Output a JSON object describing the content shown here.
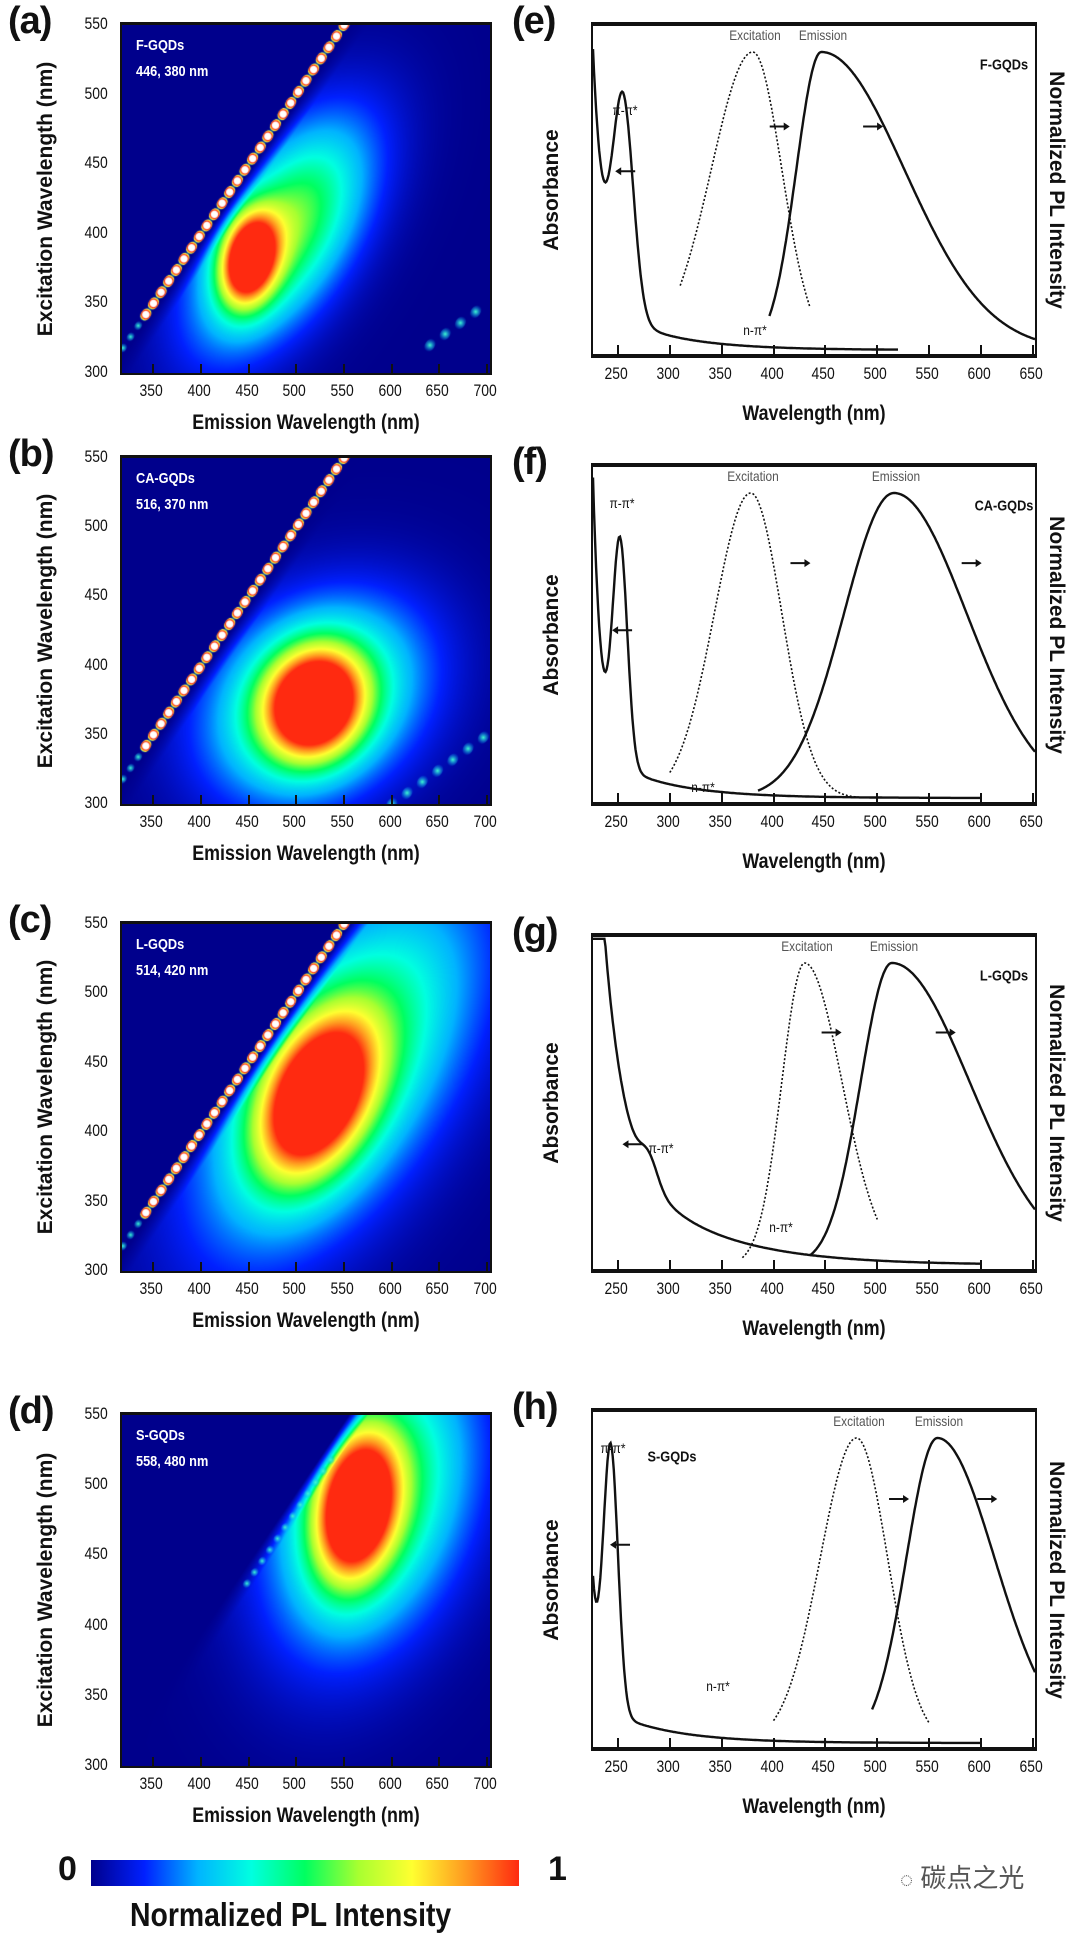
{
  "colormap": [
    "#00008c",
    "#0020ff",
    "#00b4ff",
    "#00ffe0",
    "#00ff60",
    "#a8ff30",
    "#ffff30",
    "#ff9a20",
    "#ff2a10"
  ],
  "colorbar": {
    "min_label": "0",
    "max_label": "1",
    "title": "Normalized PL Intensity"
  },
  "watermark": "碳点之光",
  "chart_data": [
    {
      "type": "heatmap",
      "panel": "(a)",
      "sample": "F-GQDs",
      "peak_label": "446, 380 nm",
      "peak": {
        "emission": 446,
        "excitation": 380
      },
      "xlabel": "Emission Wavelength (nm)",
      "ylabel": "Excitation Wavelength (nm)",
      "xlim": [
        317,
        703
      ],
      "ylim": [
        300,
        550
      ],
      "xticks": [
        "350",
        "400",
        "450",
        "500",
        "550",
        "600",
        "650",
        "700"
      ],
      "yticks": [
        "300",
        "350",
        "400",
        "450",
        "500",
        "550"
      ]
    },
    {
      "type": "heatmap",
      "panel": "(b)",
      "sample": "CA-GQDs",
      "peak_label": "516, 370 nm",
      "peak": {
        "emission": 516,
        "excitation": 370
      },
      "xlabel": "Emission Wavelength (nm)",
      "ylabel": "Excitation Wavelength (nm)",
      "xlim": [
        317,
        703
      ],
      "ylim": [
        300,
        550
      ],
      "xticks": [
        "350",
        "400",
        "450",
        "500",
        "550",
        "600",
        "650",
        "700"
      ],
      "yticks": [
        "300",
        "350",
        "400",
        "450",
        "500",
        "550"
      ]
    },
    {
      "type": "heatmap",
      "panel": "(c)",
      "sample": "L-GQDs",
      "peak_label": "514, 420 nm",
      "peak": {
        "emission": 514,
        "excitation": 420
      },
      "xlabel": "Emission Wavelength (nm)",
      "ylabel": "Excitation Wavelength (nm)",
      "xlim": [
        317,
        703
      ],
      "ylim": [
        300,
        550
      ],
      "xticks": [
        "350",
        "400",
        "450",
        "500",
        "550",
        "600",
        "650",
        "700"
      ],
      "yticks": [
        "300",
        "350",
        "400",
        "450",
        "500",
        "550"
      ]
    },
    {
      "type": "heatmap",
      "panel": "(d)",
      "sample": "S-GQDs",
      "peak_label": "558, 480 nm",
      "peak": {
        "emission": 558,
        "excitation": 480
      },
      "xlabel": "Emission Wavelength (nm)",
      "ylabel": "Excitation Wavelength (nm)",
      "xlim": [
        317,
        703
      ],
      "ylim": [
        300,
        550
      ],
      "xticks": [
        "350",
        "400",
        "450",
        "500",
        "550",
        "600",
        "650",
        "700"
      ],
      "yticks": [
        "300",
        "350",
        "400",
        "450",
        "500",
        "550"
      ]
    },
    {
      "type": "line",
      "panel": "(e)",
      "sample": "F-GQDs",
      "xlabel": "Wavelength (nm)",
      "ylabel_left": "Absorbance",
      "ylabel_right": "Normalized PL Intensity",
      "xlim": [
        226,
        652
      ],
      "xticks": [
        "250",
        "300",
        "350",
        "400",
        "450",
        "500",
        "550",
        "600",
        "650"
      ],
      "series": [
        {
          "name": "Excitation",
          "peak": 380,
          "style": "dotted"
        },
        {
          "name": "Emission",
          "peak": 446,
          "style": "solid"
        },
        {
          "name": "Absorbance",
          "peak": 255,
          "style": "solid"
        }
      ],
      "annotations": [
        "π-π*",
        "n-π*"
      ]
    },
    {
      "type": "line",
      "panel": "(f)",
      "sample": "CA-GQDs",
      "xlabel": "Wavelength (nm)",
      "ylabel_left": "Absorbance",
      "ylabel_right": "Normalized PL Intensity",
      "xlim": [
        226,
        652
      ],
      "xticks": [
        "250",
        "300",
        "350",
        "400",
        "450",
        "500",
        "550",
        "600",
        "650"
      ],
      "series": [
        {
          "name": "Excitation",
          "peak": 378,
          "style": "dotted"
        },
        {
          "name": "Emission",
          "peak": 516,
          "style": "solid"
        },
        {
          "name": "Absorbance",
          "peak": 252,
          "style": "solid"
        }
      ],
      "annotations": [
        "π-π*",
        "n-π*"
      ]
    },
    {
      "type": "line",
      "panel": "(g)",
      "sample": "L-GQDs",
      "xlabel": "Wavelength (nm)",
      "ylabel_left": "Absorbance",
      "ylabel_right": "Normalized PL Intensity",
      "xlim": [
        226,
        652
      ],
      "xticks": [
        "250",
        "300",
        "350",
        "400",
        "450",
        "500",
        "550",
        "600",
        "650"
      ],
      "series": [
        {
          "name": "Excitation",
          "peak": 430,
          "style": "dotted"
        },
        {
          "name": "Emission",
          "peak": 514,
          "style": "solid"
        },
        {
          "name": "Absorbance",
          "peak": 280,
          "style": "solid"
        }
      ],
      "annotations": [
        "π-π*",
        "n-π*"
      ]
    },
    {
      "type": "line",
      "panel": "(h)",
      "sample": "S-GQDs",
      "xlabel": "Wavelength (nm)",
      "ylabel_left": "Absorbance",
      "ylabel_right": "Normalized PL Intensity",
      "xlim": [
        226,
        652
      ],
      "xticks": [
        "250",
        "300",
        "350",
        "400",
        "450",
        "500",
        "550",
        "600",
        "650"
      ],
      "series": [
        {
          "name": "Excitation",
          "peak": 480,
          "style": "dotted"
        },
        {
          "name": "Emission",
          "peak": 558,
          "style": "solid"
        },
        {
          "name": "Absorbance",
          "peak": 243,
          "style": "solid"
        }
      ],
      "annotations": [
        "π-π*",
        "n-π*"
      ]
    }
  ]
}
